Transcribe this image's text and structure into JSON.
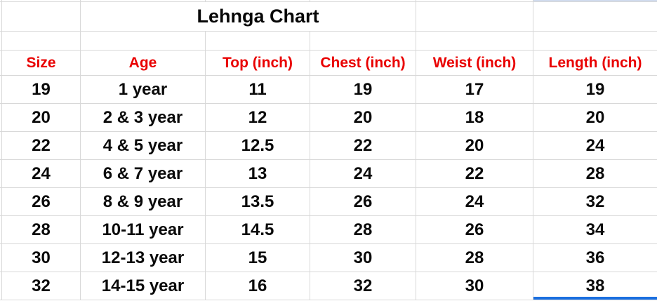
{
  "sheet": {
    "title": "Lehnga Chart",
    "columns": [
      "Size",
      "Age",
      "Top (inch)",
      "Chest (inch)",
      "Weist (inch)",
      "Length (inch)"
    ],
    "rows": [
      [
        "19",
        "1 year",
        "11",
        "19",
        "17",
        "19"
      ],
      [
        "20",
        "2 & 3 year",
        "12",
        "20",
        "18",
        "20"
      ],
      [
        "22",
        "4 & 5 year",
        "12.5",
        "22",
        "20",
        "24"
      ],
      [
        "24",
        "6 & 7 year",
        "13",
        "24",
        "22",
        "28"
      ],
      [
        "26",
        "8 & 9 year",
        "13.5",
        "26",
        "24",
        "32"
      ],
      [
        "28",
        "10-11 year",
        "14.5",
        "28",
        "26",
        "34"
      ],
      [
        "30",
        "12-13 year",
        "15",
        "30",
        "28",
        "36"
      ],
      [
        "32",
        "14-15 year",
        "16",
        "32",
        "30",
        "38"
      ]
    ],
    "colors": {
      "header_text": "#e90000",
      "body_text": "#0a0a0a",
      "title_text": "#070707",
      "gridline": "#d8d8d8",
      "selection_border": "#1a6fe0",
      "selection_fill": "#d0dbee",
      "background": "#ffffff"
    }
  }
}
